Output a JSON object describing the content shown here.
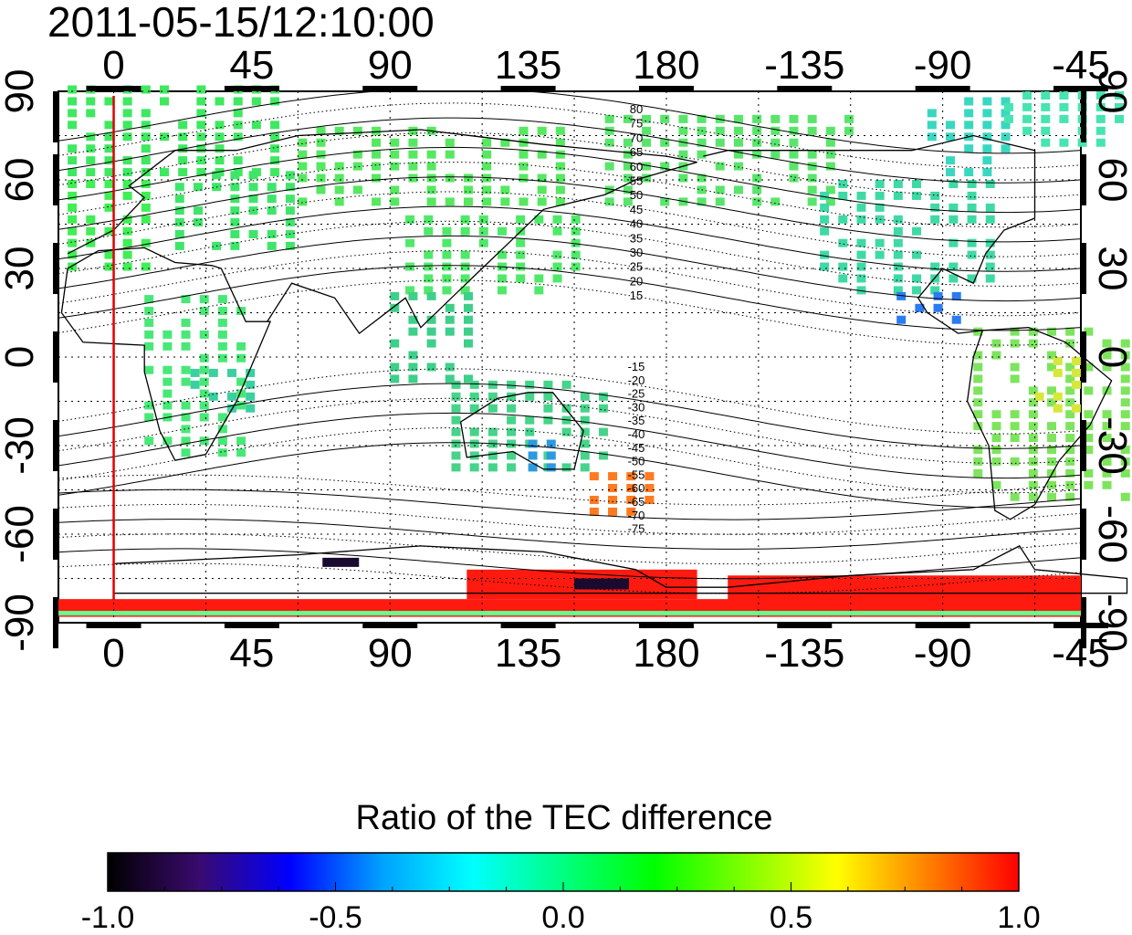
{
  "timestamp": "2011-05-15/12:10:00",
  "map": {
    "top_lon_ticks": [
      "0",
      "45",
      "90",
      "135",
      "180",
      "-135",
      "-90",
      "-45"
    ],
    "bottom_lon_ticks": [
      "0",
      "45",
      "90",
      "135",
      "180",
      "-135",
      "-90",
      "-45"
    ],
    "left_lat_ticks": [
      "90",
      "60",
      "30",
      "0",
      "-30",
      "-60",
      "-90"
    ],
    "right_lat_ticks": [
      "90",
      "60",
      "30",
      "0",
      "-30",
      "-60",
      "-90"
    ],
    "lon_range": [
      -18,
      315
    ],
    "lat_range": [
      -90,
      90
    ],
    "grid": true,
    "marker_line_lon": 0,
    "marker_line_color": "#e00000",
    "north_contour_labels": [
      "80",
      "75",
      "70",
      "65",
      "60",
      "55",
      "50",
      "45",
      "40",
      "35",
      "30",
      "25",
      "20",
      "15"
    ],
    "south_contour_labels": [
      "-15",
      "-20",
      "-25",
      "-30",
      "-35",
      "-40",
      "-45",
      "-50",
      "-55",
      "-60",
      "-65",
      "-70",
      "-75"
    ]
  },
  "colorbar": {
    "title": "Ratio of the TEC difference",
    "ticks": [
      "-1.0",
      "-0.5",
      "0.0",
      "0.5",
      "1.0"
    ],
    "range": [
      -1.0,
      1.0
    ],
    "colors": [
      "#000000",
      "#3a0a6e",
      "#0000ff",
      "#00a0ff",
      "#00ffff",
      "#00ff80",
      "#00ff00",
      "#80ff00",
      "#ffff00",
      "#ff8000",
      "#ff0000"
    ]
  }
}
